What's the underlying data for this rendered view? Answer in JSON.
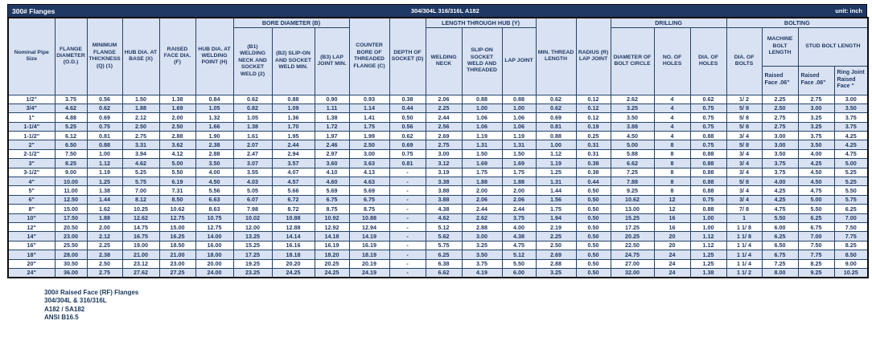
{
  "title_bar": {
    "title": "300# Flanges",
    "material": "304/304L 316/316L A182",
    "unit": "unit: inch"
  },
  "groups": {
    "bore": "BORE DIAMETER (B)",
    "length": "LENGTH THROUGH HUB (Y)",
    "drilling": "DRILLING",
    "bolting": "BOLTING"
  },
  "headers": {
    "nominal": "Nominal Pipe Size",
    "od": "FLANGE DIAMETER (O.D.)",
    "thickness": "MINIMUM FLANGE THICKNESS (Q) (1)",
    "hub_base": "HUB DIA. AT BASE (X)",
    "raised_face": "RAISED FACE DIA. (F)",
    "hub_weld": "HUB DIA. AT WELDING POINT (H)",
    "b1": "(B1) WELDING NECK AND SOCKET WELD (2)",
    "b2": "(B2) SLIP-ON AND SOCKET WELD MIN.",
    "b3": "(B3) LAP JOINT MIN.",
    "counter_bore": "COUNTER BORE OF THREADED FLANGE (C)",
    "socket_depth": "DEPTH OF SOCKET (D)",
    "welding_neck": "WELDING NECK",
    "slip_on": "SLIP-ON SOCKET WELD AND THREADED",
    "lap_joint": "LAP JOINT",
    "min_thread": "MIN. THREAD LENGTH",
    "radius": "RADIUS (R) LAP JOINT",
    "bolt_circle": "DIAMETER OF BOLT CIRCLE",
    "no_holes": "NO. OF HOLES",
    "dia_holes": "DIA. OF HOLES",
    "dia_bolts": "DIA. OF BOLTS",
    "machine_bolt": "MACHINE BOLT LENGTH",
    "stud_bolt": "STUD BOLT LENGTH",
    "mb_raised": "Raised Face .06\"",
    "sb_raised": "Raised Face .06\"",
    "sb_ring": "Ring Joint Raised Face \""
  },
  "table": {
    "rows": [
      [
        "1/2\"",
        "3.75",
        "0.56",
        "1.50",
        "1.38",
        "0.84",
        "0.62",
        "0.88",
        "0.90",
        "0.93",
        "0.38",
        "2.06",
        "0.88",
        "0.88",
        "0.62",
        "0.12",
        "2.62",
        "4",
        "0.62",
        "1/ 2",
        "2.25",
        "2.75",
        "3.00"
      ],
      [
        "3/4\"",
        "4.62",
        "0.62",
        "1.88",
        "1.69",
        "1.05",
        "0.82",
        "1.09",
        "1.11",
        "1.14",
        "0.44",
        "2.25",
        "1.00",
        "1.00",
        "0.62",
        "0.12",
        "3.25",
        "4",
        "0.75",
        "5/ 8",
        "2.50",
        "3.00",
        "3.50"
      ],
      [
        "1\"",
        "4.88",
        "0.69",
        "2.12",
        "2.00",
        "1.32",
        "1.05",
        "1.36",
        "1.38",
        "1.41",
        "0.50",
        "2.44",
        "1.06",
        "1.06",
        "0.69",
        "0.12",
        "3.50",
        "4",
        "0.75",
        "5/ 8",
        "2.75",
        "3.25",
        "3.75"
      ],
      [
        "1-1/4\"",
        "5.25",
        "0.75",
        "2.50",
        "2.50",
        "1.66",
        "1.38",
        "1.70",
        "1.72",
        "1.75",
        "0.56",
        "2.56",
        "1.06",
        "1.06",
        "0.81",
        "0.19",
        "3.88",
        "4",
        "0.75",
        "5/ 8",
        "2.75",
        "3.25",
        "3.75"
      ],
      [
        "1-1/2\"",
        "6.12",
        "0.81",
        "2.75",
        "2.88",
        "1.90",
        "1.61",
        "1.95",
        "1.97",
        "1.99",
        "0.62",
        "2.69",
        "1.19",
        "1.19",
        "0.88",
        "0.25",
        "4.50",
        "4",
        "0.88",
        "3/ 4",
        "3.00",
        "3.75",
        "4.25"
      ],
      [
        "2\"",
        "6.50",
        "0.88",
        "3.31",
        "3.62",
        "2.38",
        "2.07",
        "2.44",
        "2.46",
        "2.50",
        "0.69",
        "2.75",
        "1.31",
        "1.31",
        "1.00",
        "0.31",
        "5.00",
        "8",
        "0.75",
        "5/ 8",
        "3.00",
        "3.50",
        "4.25"
      ],
      [
        "2-1/2\"",
        "7.50",
        "1.00",
        "3.94",
        "4.12",
        "2.88",
        "2.47",
        "2.94",
        "2.97",
        "3.00",
        "0.75",
        "3.00",
        "1.50",
        "1.50",
        "1.12",
        "0.31",
        "5.88",
        "8",
        "0.88",
        "3/ 4",
        "3.50",
        "4.00",
        "4.75"
      ],
      [
        "3\"",
        "8.25",
        "1.12",
        "4.62",
        "5.00",
        "3.50",
        "3.07",
        "3.57",
        "3.60",
        "3.63",
        "0.81",
        "3.12",
        "1.69",
        "1.69",
        "1.19",
        "0.38",
        "6.62",
        "8",
        "0.88",
        "3/ 4",
        "3.75",
        "4.25",
        "5.00"
      ],
      [
        "3-1/2\"",
        "9.00",
        "1.19",
        "5.25",
        "5.50",
        "4.00",
        "3.55",
        "4.07",
        "4.10",
        "4.13",
        "-",
        "3.19",
        "1.75",
        "1.75",
        "1.25",
        "0.38",
        "7.25",
        "8",
        "0.88",
        "3/ 4",
        "3.75",
        "4.50",
        "5.25"
      ],
      [
        "4\"",
        "10.00",
        "1.25",
        "5.75",
        "6.19",
        "4.50",
        "4.03",
        "4.57",
        "4.60",
        "4.63",
        "-",
        "3.38",
        "1.88",
        "1.88",
        "1.31",
        "0.44",
        "7.88",
        "8",
        "0.88",
        "5/ 8",
        "4.00",
        "4.50",
        "5.25"
      ],
      [
        "5\"",
        "11.00",
        "1.38",
        "7.00",
        "7.31",
        "5.56",
        "5.05",
        "5.66",
        "5.69",
        "5.69",
        "-",
        "3.88",
        "2.00",
        "2.00",
        "1.44",
        "0.50",
        "9.25",
        "8",
        "0.88",
        "3/ 4",
        "4.25",
        "4.75",
        "5.50"
      ],
      [
        "6\"",
        "12.50",
        "1.44",
        "8.12",
        "8.50",
        "6.63",
        "6.07",
        "6.72",
        "6.75",
        "6.75",
        "-",
        "3.88",
        "2.06",
        "2.06",
        "1.56",
        "0.50",
        "10.62",
        "12",
        "0.75",
        "3/ 4",
        "4.25",
        "5.00",
        "5.75"
      ],
      [
        "8\"",
        "15.00",
        "1.62",
        "10.25",
        "10.62",
        "8.63",
        "7.98",
        "8.72",
        "8.75",
        "8.75",
        "-",
        "4.38",
        "2.44",
        "2.44",
        "1.75",
        "0.50",
        "13.00",
        "12",
        "0.88",
        "7/ 8",
        "4.75",
        "5.50",
        "6.25"
      ],
      [
        "10\"",
        "17.50",
        "1.88",
        "12.62",
        "12.75",
        "10.75",
        "10.02",
        "10.88",
        "10.92",
        "10.88",
        "-",
        "4.62",
        "2.62",
        "3.75",
        "1.94",
        "0.50",
        "15.25",
        "16",
        "1.00",
        "1",
        "5.50",
        "6.25",
        "7.00"
      ],
      [
        "12\"",
        "20.50",
        "2.00",
        "14.75",
        "15.00",
        "12.75",
        "12.00",
        "12.88",
        "12.92",
        "12.94",
        "-",
        "5.12",
        "2.88",
        "4.00",
        "2.19",
        "0.50",
        "17.25",
        "16",
        "1.00",
        "1 1/ 8",
        "6.00",
        "6.75",
        "7.50"
      ],
      [
        "14\"",
        "23.00",
        "2.12",
        "16.75",
        "16.25",
        "14.00",
        "13.25",
        "14.14",
        "14.18",
        "14.19",
        "-",
        "5.62",
        "3.00",
        "4.38",
        "2.25",
        "0.50",
        "20.25",
        "20",
        "1.12",
        "1 1/ 8",
        "6.25",
        "7.00",
        "7.75"
      ],
      [
        "16\"",
        "25.50",
        "2.25",
        "19.00",
        "18.50",
        "16.00",
        "15.25",
        "16.16",
        "16.19",
        "16.19",
        "-",
        "5.75",
        "3.25",
        "4.75",
        "2.50",
        "0.50",
        "22.50",
        "20",
        "1.12",
        "1 1/ 4",
        "6.50",
        "7.50",
        "8.25"
      ],
      [
        "18\"",
        "28.00",
        "2.38",
        "21.00",
        "21.00",
        "18.00",
        "17.25",
        "18.18",
        "18.20",
        "18.19",
        "-",
        "6.25",
        "3.50",
        "5.12",
        "2.69",
        "0.50",
        "24.75",
        "24",
        "1.25",
        "1 1/ 4",
        "6.75",
        "7.75",
        "8.50"
      ],
      [
        "20\"",
        "30.50",
        "2.50",
        "23.12",
        "23.00",
        "20.00",
        "19.25",
        "20.20",
        "20.25",
        "20.19",
        "-",
        "6.38",
        "3.75",
        "5.50",
        "2.88",
        "0.50",
        "27.00",
        "24",
        "1.25",
        "1 1/ 4",
        "7.25",
        "8.25",
        "9.00"
      ],
      [
        "24\"",
        "36.00",
        "2.75",
        "27.62",
        "27.25",
        "24.00",
        "23.25",
        "24.25",
        "24.25",
        "24.19",
        "-",
        "6.62",
        "4.19",
        "6.00",
        "3.25",
        "0.50",
        "32.00",
        "24",
        "1.38",
        "1 1/ 2",
        "8.00",
        "9.25",
        "10.25"
      ]
    ]
  },
  "notes": [
    "300# Raised Face (RF) Flanges",
    "304/304L & 316/316L",
    "A182 / SA182",
    "ANSI B16.5"
  ],
  "colors": {
    "title_bar_bg": "#1F3864",
    "title_bar_text": "#FFFFFF",
    "header_fill": "#D9E2F2",
    "row_alt_fill": "#D9E2F2",
    "row_fill": "#FFFFFF",
    "text": "#1F3864",
    "grid": "#24436b"
  }
}
